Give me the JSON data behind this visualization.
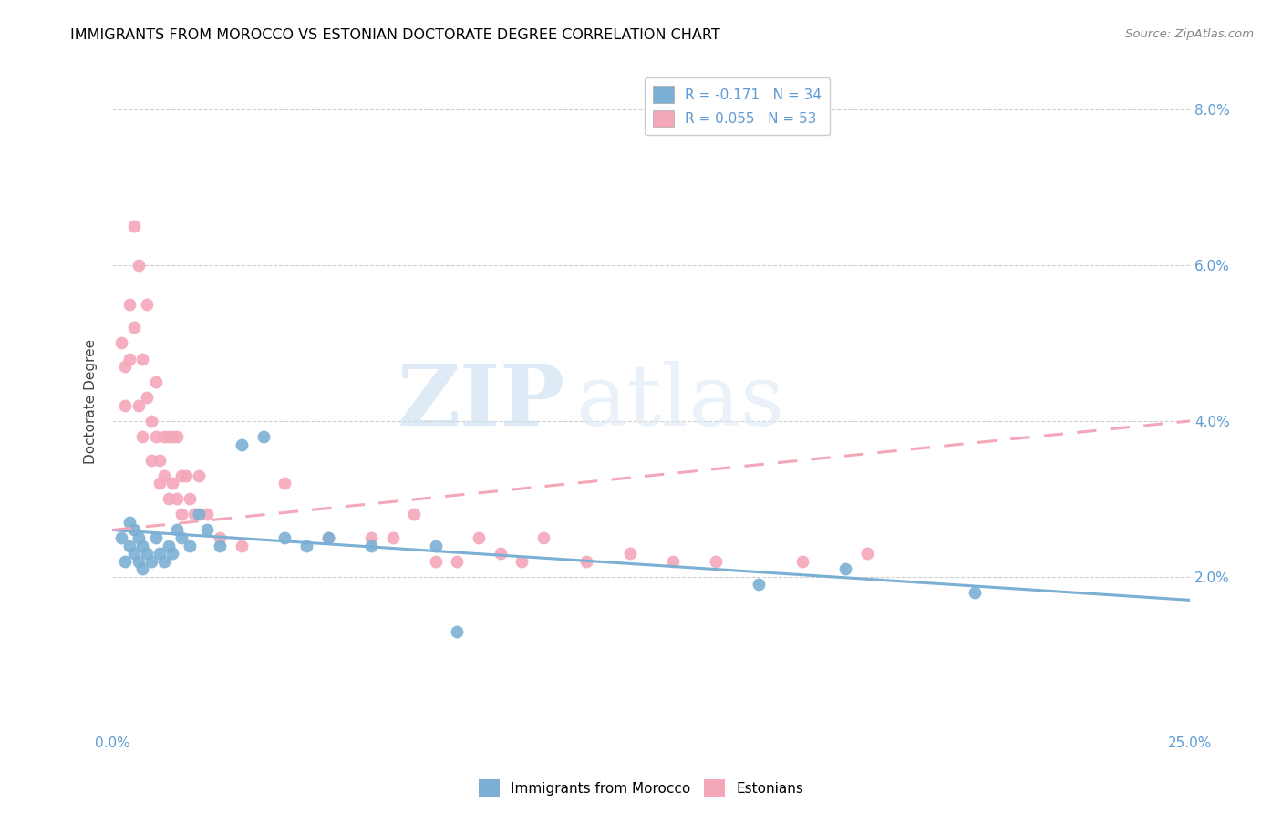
{
  "title": "IMMIGRANTS FROM MOROCCO VS ESTONIAN DOCTORATE DEGREE CORRELATION CHART",
  "source": "Source: ZipAtlas.com",
  "ylabel": "Doctorate Degree",
  "xlim": [
    0.0,
    0.25
  ],
  "ylim": [
    0.0,
    0.085
  ],
  "watermark_zip": "ZIP",
  "watermark_atlas": "atlas",
  "blue_color": "#7bafd4",
  "pink_color": "#f4a7b9",
  "legend_blue_label": "R = -0.171   N = 34",
  "legend_pink_label": "R = 0.055   N = 53",
  "legend_bottom_blue": "Immigrants from Morocco",
  "legend_bottom_pink": "Estonians",
  "blue_scatter_x": [
    0.002,
    0.003,
    0.004,
    0.004,
    0.005,
    0.005,
    0.006,
    0.006,
    0.007,
    0.007,
    0.008,
    0.009,
    0.01,
    0.011,
    0.012,
    0.013,
    0.014,
    0.015,
    0.016,
    0.018,
    0.02,
    0.022,
    0.025,
    0.03,
    0.035,
    0.04,
    0.045,
    0.05,
    0.06,
    0.075,
    0.08,
    0.15,
    0.17,
    0.2
  ],
  "blue_scatter_y": [
    0.025,
    0.022,
    0.027,
    0.024,
    0.023,
    0.026,
    0.022,
    0.025,
    0.021,
    0.024,
    0.023,
    0.022,
    0.025,
    0.023,
    0.022,
    0.024,
    0.023,
    0.026,
    0.025,
    0.024,
    0.028,
    0.026,
    0.024,
    0.037,
    0.038,
    0.025,
    0.024,
    0.025,
    0.024,
    0.024,
    0.013,
    0.019,
    0.021,
    0.018
  ],
  "pink_scatter_x": [
    0.002,
    0.003,
    0.003,
    0.004,
    0.004,
    0.005,
    0.005,
    0.006,
    0.006,
    0.007,
    0.007,
    0.008,
    0.008,
    0.009,
    0.009,
    0.01,
    0.01,
    0.011,
    0.011,
    0.012,
    0.012,
    0.013,
    0.013,
    0.014,
    0.014,
    0.015,
    0.015,
    0.016,
    0.016,
    0.017,
    0.018,
    0.019,
    0.02,
    0.022,
    0.025,
    0.03,
    0.04,
    0.05,
    0.06,
    0.065,
    0.07,
    0.075,
    0.08,
    0.085,
    0.09,
    0.095,
    0.1,
    0.11,
    0.12,
    0.13,
    0.14,
    0.16,
    0.175
  ],
  "pink_scatter_y": [
    0.05,
    0.047,
    0.042,
    0.055,
    0.048,
    0.065,
    0.052,
    0.06,
    0.042,
    0.048,
    0.038,
    0.055,
    0.043,
    0.04,
    0.035,
    0.045,
    0.038,
    0.035,
    0.032,
    0.038,
    0.033,
    0.038,
    0.03,
    0.038,
    0.032,
    0.038,
    0.03,
    0.033,
    0.028,
    0.033,
    0.03,
    0.028,
    0.033,
    0.028,
    0.025,
    0.024,
    0.032,
    0.025,
    0.025,
    0.025,
    0.028,
    0.022,
    0.022,
    0.025,
    0.023,
    0.022,
    0.025,
    0.022,
    0.023,
    0.022,
    0.022,
    0.022,
    0.023
  ],
  "blue_trend_x": [
    0.0,
    0.25
  ],
  "blue_trend_y": [
    0.026,
    0.017
  ],
  "pink_trend_x": [
    0.0,
    0.25
  ],
  "pink_trend_y": [
    0.026,
    0.04
  ]
}
